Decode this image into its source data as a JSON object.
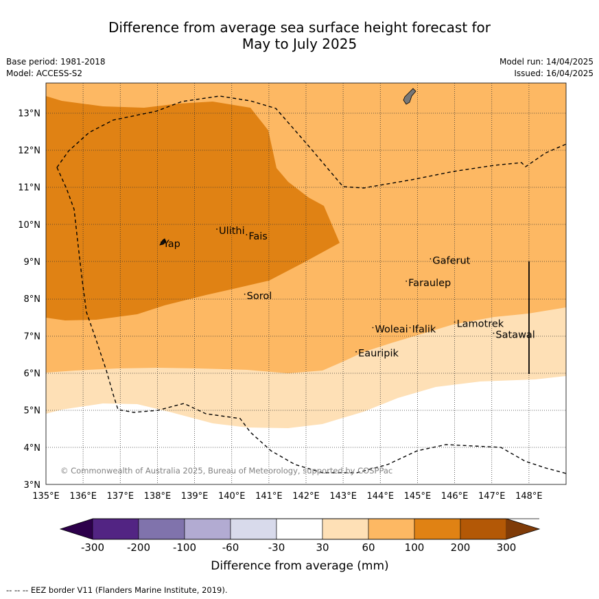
{
  "title_line1": "Difference from average sea surface height forecast for",
  "title_line2": "May to July 2025",
  "base_period": "Base period: 1981-2018",
  "model": "Model: ACCESS-S2",
  "model_run": "Model run: 14/04/2025",
  "issued": "Issued: 16/04/2025",
  "copyright": "© Commonwealth of Australia 2025, Bureau of Meteorology, supported by COSPPac",
  "footer_note": "--  --  -- EEZ border V11 (Flanders Marine Institute, 2019).",
  "colorbar": {
    "label": "Difference from average (mm)",
    "ticks": [
      "-300",
      "-200",
      "-100",
      "-60",
      "-30",
      "30",
      "60",
      "100",
      "200",
      "300"
    ],
    "colors": [
      "#522483",
      "#8073ac",
      "#b2abd2",
      "#d8daeb",
      "#ffffff",
      "#fee0b6",
      "#fdb863",
      "#e08214",
      "#b35806"
    ],
    "extend_low_color": "#2d004b",
    "extend_high_color": "#7f3b08"
  },
  "map": {
    "lon_range": [
      135,
      149
    ],
    "lat_range": [
      3,
      13.8
    ],
    "lon_ticks": [
      "135°E",
      "136°E",
      "137°E",
      "138°E",
      "139°E",
      "140°E",
      "141°E",
      "142°E",
      "143°E",
      "144°E",
      "145°E",
      "146°E",
      "147°E",
      "148°E"
    ],
    "lat_ticks": [
      "3°N",
      "4°N",
      "5°N",
      "6°N",
      "7°N",
      "8°N",
      "9°N",
      "10°N",
      "11°N",
      "12°N",
      "13°N"
    ],
    "places": [
      {
        "name": "Yap",
        "lon": 138.1,
        "lat": 9.5
      },
      {
        "name": "Ulithi",
        "lon": 139.6,
        "lat": 9.85
      },
      {
        "name": "Fais",
        "lon": 140.4,
        "lat": 9.7
      },
      {
        "name": "Gaferut",
        "lon": 145.35,
        "lat": 9.05
      },
      {
        "name": "Faraulep",
        "lon": 144.7,
        "lat": 8.45
      },
      {
        "name": "Sorol",
        "lon": 140.35,
        "lat": 8.1
      },
      {
        "name": "Lamotrek",
        "lon": 146.0,
        "lat": 7.35
      },
      {
        "name": "Woleai",
        "lon": 143.8,
        "lat": 7.2
      },
      {
        "name": "Ifalik",
        "lon": 144.8,
        "lat": 7.2
      },
      {
        "name": "Satawal",
        "lon": 147.05,
        "lat": 7.05
      },
      {
        "name": "Eauripik",
        "lon": 143.35,
        "lat": 6.55
      }
    ]
  }
}
